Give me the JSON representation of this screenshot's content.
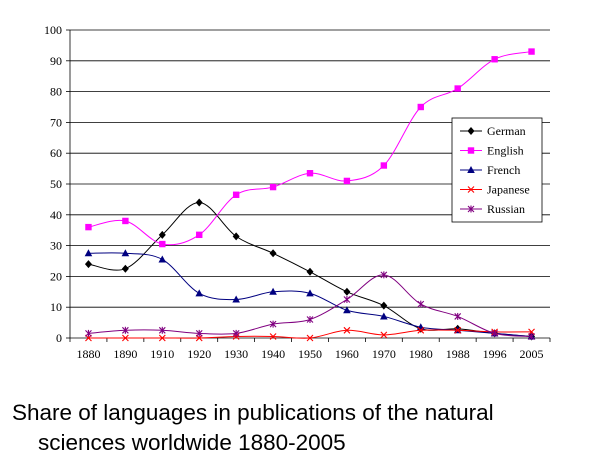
{
  "chart_data": {
    "type": "line",
    "title": "",
    "xlabel": "",
    "ylabel": "",
    "categories": [
      "1880",
      "1890",
      "1910",
      "1920",
      "1930",
      "1940",
      "1950",
      "1960",
      "1970",
      "1980",
      "1988",
      "1996",
      "2005"
    ],
    "ylim": [
      0,
      100
    ],
    "yticks": [
      0,
      10,
      20,
      30,
      40,
      50,
      60,
      70,
      80,
      90,
      100
    ],
    "grid": "horizontal",
    "legend_position": "right",
    "series": [
      {
        "name": "German",
        "color": "#000000",
        "marker": "diamond",
        "values": [
          24,
          22.5,
          33.5,
          44,
          33,
          27.5,
          21.5,
          15,
          10.5,
          3,
          3,
          1.5,
          0.5
        ]
      },
      {
        "name": "English",
        "color": "#ff00ff",
        "marker": "square",
        "values": [
          36,
          38,
          30.5,
          33.5,
          46.5,
          49,
          53.5,
          51,
          56,
          75,
          81,
          90.5,
          93
        ]
      },
      {
        "name": "French",
        "color": "#000080",
        "marker": "triangle",
        "values": [
          27.5,
          27.5,
          25.5,
          14.5,
          12.5,
          15,
          14.5,
          9,
          7,
          3.5,
          2.5,
          1.5,
          0.5
        ]
      },
      {
        "name": "Japanese",
        "color": "#ff0000",
        "marker": "x",
        "values": [
          0,
          0,
          0,
          0,
          0.5,
          0.5,
          0,
          2.5,
          1,
          2.5,
          2.5,
          2,
          2
        ]
      },
      {
        "name": "Russian",
        "color": "#800080",
        "marker": "star",
        "values": [
          1.5,
          2.5,
          2.5,
          1.5,
          1.5,
          4.5,
          6,
          12.5,
          20.5,
          11,
          7,
          1.5,
          0.5
        ]
      }
    ]
  },
  "caption": {
    "line1": "Share of languages in publications of the natural",
    "line2": "sciences worldwide 1880-2005"
  }
}
